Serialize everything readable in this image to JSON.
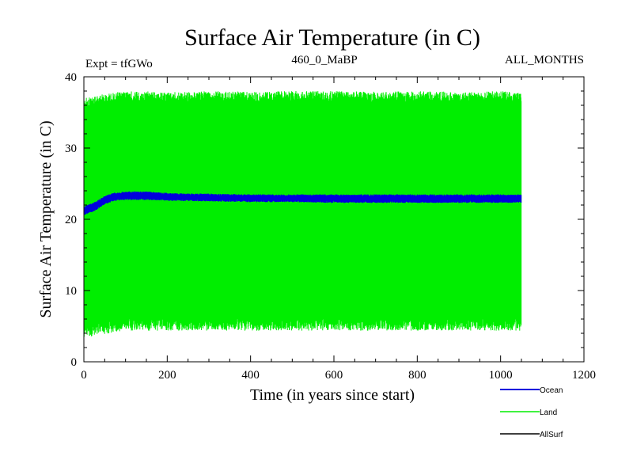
{
  "chart_data": {
    "type": "line",
    "title": "Surface Air Temperature (in C)",
    "subtitle_left": "Expt = tfGWo",
    "subtitle_center": "460_0_MaBP",
    "subtitle_right": "ALL_MONTHS",
    "xlabel": "Time (in years since start)",
    "ylabel": "Surface Air Temperature (in C)",
    "xlim": [
      0,
      1200
    ],
    "ylim": [
      0,
      40
    ],
    "xticks": [
      0,
      200,
      400,
      600,
      800,
      1000,
      1200
    ],
    "yticks": [
      0,
      10,
      20,
      30,
      40
    ],
    "series": [
      {
        "name": "Land",
        "color": "#00ee00",
        "style": "seasonal-envelope",
        "x": [
          0,
          50,
          100,
          200,
          300,
          400,
          500,
          600,
          700,
          800,
          900,
          1000,
          1050
        ],
        "upper": [
          37,
          37.6,
          38,
          37.9,
          38,
          37.9,
          38,
          38,
          37.9,
          38,
          37.9,
          38,
          37.7
        ],
        "lower": [
          4,
          4.5,
          5,
          5,
          5,
          5,
          5,
          5,
          5,
          5,
          5,
          5,
          5
        ]
      },
      {
        "name": "Ocean",
        "color": "#0000dd",
        "style": "band",
        "x": [
          0,
          25,
          50,
          75,
          100,
          150,
          200,
          300,
          400,
          500,
          600,
          700,
          800,
          900,
          1000,
          1050
        ],
        "upper": [
          21.8,
          22.4,
          23.3,
          23.8,
          23.9,
          23.9,
          23.7,
          23.6,
          23.5,
          23.5,
          23.5,
          23.5,
          23.5,
          23.5,
          23.5,
          23.5
        ],
        "lower": [
          20.6,
          21.1,
          22.1,
          22.6,
          22.7,
          22.7,
          22.6,
          22.5,
          22.4,
          22.4,
          22.3,
          22.3,
          22.3,
          22.3,
          22.3,
          22.3
        ]
      },
      {
        "name": "AllSurf",
        "color": "#000000",
        "style": "line",
        "x": [],
        "values": []
      }
    ],
    "legend": [
      "Ocean",
      "Land",
      "AllSurf"
    ],
    "legend_position": "bottom-right"
  }
}
